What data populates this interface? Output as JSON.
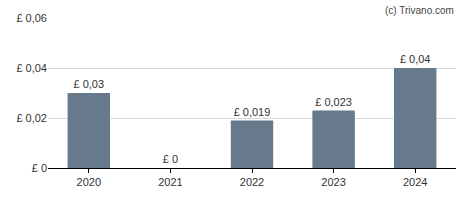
{
  "chart_data": {
    "type": "bar",
    "categories": [
      "2020",
      "2021",
      "2022",
      "2023",
      "2024"
    ],
    "values": [
      0.03,
      0,
      0.019,
      0.023,
      0.04
    ],
    "value_labels": [
      "£ 0,03",
      "£ 0",
      "£ 0,019",
      "£ 0,023",
      "£ 0,04"
    ],
    "data_labels": true,
    "color": "#677a8b",
    "ylim": [
      0,
      0.06
    ],
    "yticks": [
      {
        "value": 0,
        "label": "£ 0"
      },
      {
        "value": 0.02,
        "label": "£ 0,02"
      },
      {
        "value": 0.04,
        "label": "£ 0,04"
      },
      {
        "value": 0.06,
        "label": "£ 0,06"
      }
    ],
    "grid": true,
    "annotations": [
      "(c) Trivano.com"
    ]
  }
}
